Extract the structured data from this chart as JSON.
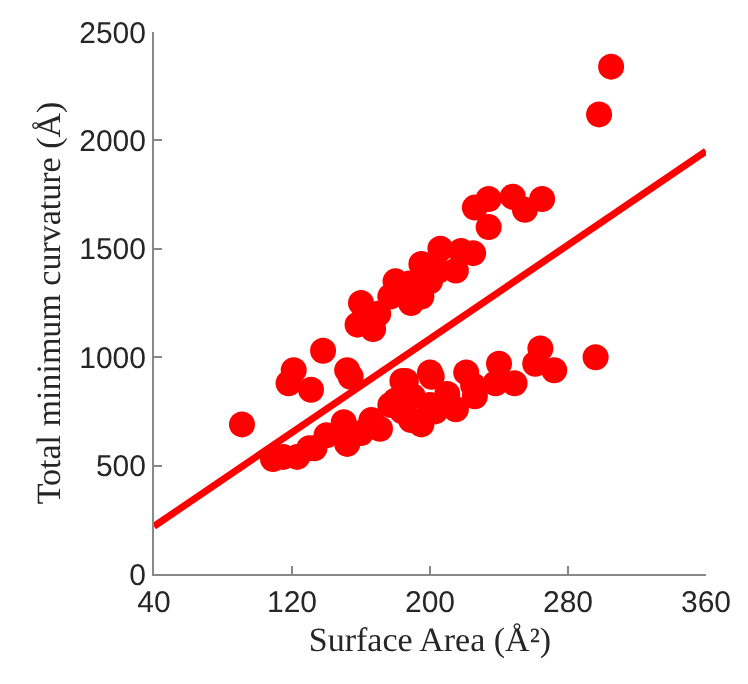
{
  "chart_data": {
    "type": "scatter",
    "xlabel": "Surface Area (Å²)",
    "ylabel": "Total minimum curvature (Å)",
    "xlim": [
      40,
      360
    ],
    "xticks": [
      40,
      120,
      200,
      280,
      360
    ],
    "ylim": [
      0,
      2500
    ],
    "yticks": [
      0,
      500,
      1000,
      1500,
      2000,
      2500
    ],
    "series": [
      {
        "color": "#ff0000",
        "marker": "circle",
        "x": [
          91,
          109,
          115,
          123,
          133,
          118,
          121,
          131,
          138,
          152,
          154,
          152,
          158,
          160,
          167,
          166,
          171,
          177,
          184,
          186,
          177,
          189,
          200,
          195,
          184,
          201,
          221,
          203,
          189,
          240,
          249,
          238,
          264,
          272,
          261,
          296,
          226,
          305,
          298,
          226,
          234,
          234,
          248,
          255,
          265,
          206,
          218,
          195,
          188,
          195,
          200,
          205,
          180,
          170,
          215,
          225,
          160,
          180,
          190,
          200,
          210,
          215,
          225,
          140,
          150,
          130
        ],
        "values": [
          690,
          530,
          540,
          540,
          580,
          880,
          940,
          850,
          1030,
          940,
          910,
          600,
          1150,
          1250,
          1130,
          710,
          670,
          780,
          750,
          890,
          1280,
          1250,
          930,
          690,
          890,
          910,
          930,
          750,
          710,
          970,
          880,
          880,
          1040,
          940,
          970,
          1000,
          820,
          2340,
          2120,
          1690,
          1730,
          1600,
          1740,
          1680,
          1730,
          1500,
          1490,
          1430,
          1340,
          1280,
          1350,
          1400,
          1350,
          1200,
          1400,
          1480,
          650,
          800,
          820,
          780,
          830,
          760,
          870,
          640,
          700,
          580
        ]
      },
      {
        "type": "line",
        "color": "#ff0000",
        "line_style": "solid",
        "x": [
          40,
          360
        ],
        "values": [
          220,
          1950
        ]
      }
    ]
  }
}
